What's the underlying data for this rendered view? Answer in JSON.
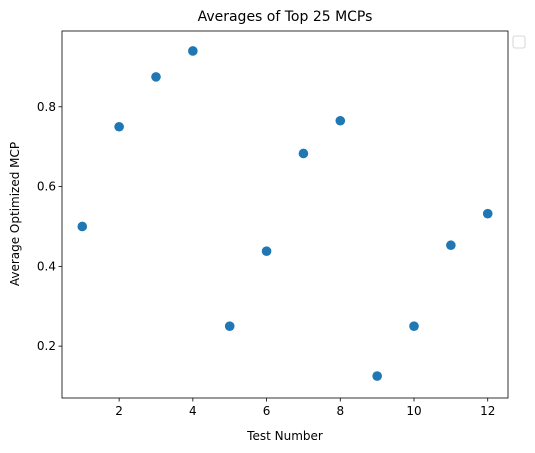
{
  "chart_data": {
    "type": "scatter",
    "title": "Averages of Top 25 MCPs",
    "xlabel": "Test Number",
    "ylabel": "Average Optimized MCP",
    "xlim": [
      0.45,
      12.55
    ],
    "ylim": [
      0.07,
      0.99
    ],
    "x_ticks": [
      2,
      4,
      6,
      8,
      10,
      12
    ],
    "x_tick_labels": [
      "2",
      "4",
      "6",
      "8",
      "10",
      "12"
    ],
    "y_ticks": [
      0.2,
      0.4,
      0.6,
      0.8
    ],
    "y_tick_labels": [
      "0.2",
      "0.4",
      "0.6",
      "0.8"
    ],
    "grid": false,
    "legend": "upper-right outside (empty)",
    "marker_color": "#1f77b4",
    "series": [
      {
        "x": [
          1,
          2,
          3,
          4,
          5,
          6,
          7,
          8,
          9,
          10,
          11,
          12
        ],
        "y": [
          0.5,
          0.75,
          0.875,
          0.94,
          0.25,
          0.438,
          0.683,
          0.765,
          0.125,
          0.25,
          0.453,
          0.532
        ]
      }
    ]
  }
}
